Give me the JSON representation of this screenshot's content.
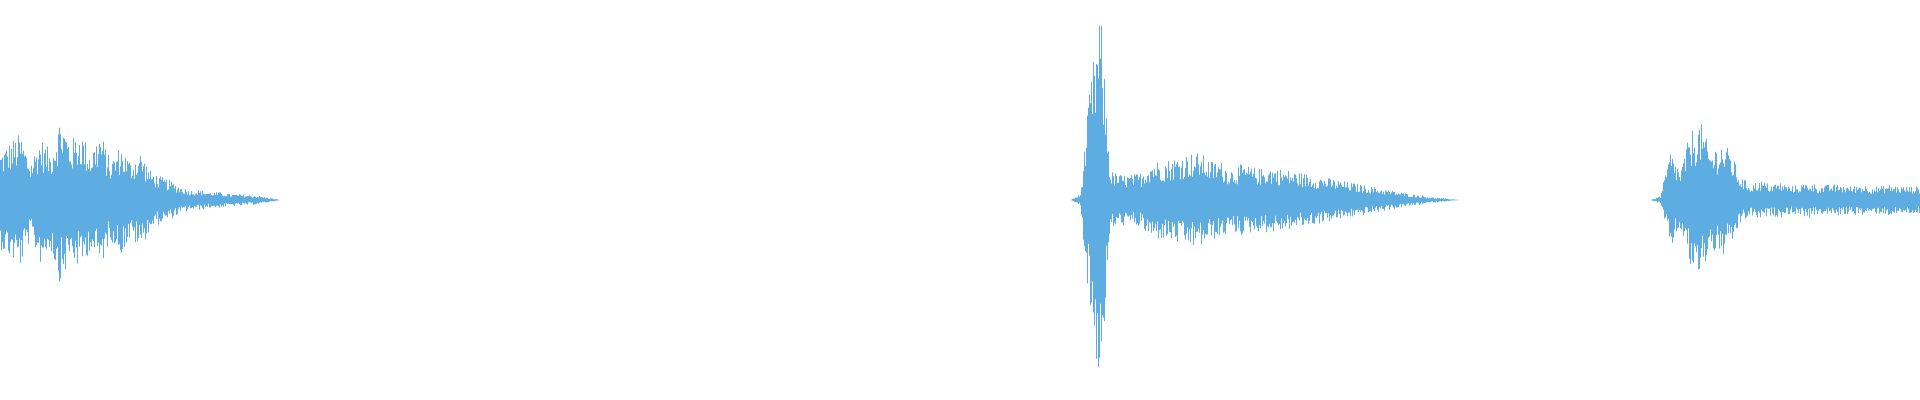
{
  "chart_data": {
    "type": "area",
    "title": "",
    "xlabel": "",
    "ylabel": "",
    "ylim": [
      -1,
      1
    ],
    "grid": false,
    "legend": "none",
    "color": "#5DADE2",
    "envelope_amplitude": [
      0.25,
      0.3,
      0.34,
      0.2,
      0.32,
      0.25,
      0.43,
      0.3,
      0.36,
      0.25,
      0.35,
      0.2,
      0.28,
      0.2,
      0.25,
      0.15,
      0.12,
      0.1,
      0.07,
      0.05,
      0.05,
      0.04,
      0.04,
      0.03,
      0.03,
      0.025,
      0.02,
      0.01,
      0,
      0,
      0,
      0,
      0,
      0,
      0,
      0,
      0,
      0,
      0,
      0,
      0,
      0,
      0,
      0,
      0,
      0,
      0,
      0,
      0,
      0,
      0,
      0,
      0,
      0,
      0,
      0,
      0,
      0,
      0,
      0,
      0,
      0,
      0,
      0,
      0,
      0,
      0,
      0,
      0,
      0,
      0,
      0,
      0,
      0,
      0,
      0,
      0,
      0,
      0,
      0,
      0,
      0,
      0,
      0,
      0,
      0,
      0,
      0,
      0,
      0,
      0,
      0,
      0,
      0,
      0,
      0,
      0,
      0,
      0,
      0,
      0,
      0,
      0,
      0,
      0,
      0,
      0,
      0,
      0.03,
      0.6,
      0.97,
      0.15,
      0.13,
      0.13,
      0.14,
      0.2,
      0.2,
      0.21,
      0.23,
      0.24,
      0.24,
      0.2,
      0.2,
      0.16,
      0.18,
      0.17,
      0.16,
      0.17,
      0.16,
      0.15,
      0.14,
      0.13,
      0.12,
      0.11,
      0.1,
      0.09,
      0.08,
      0.07,
      0.06,
      0.05,
      0.04,
      0.03,
      0.025,
      0.015,
      0.01,
      0.005,
      0,
      0,
      0,
      0,
      0,
      0,
      0,
      0,
      0,
      0,
      0,
      0,
      0,
      0,
      0,
      0,
      0,
      0,
      0,
      0,
      0.02,
      0.25,
      0.15,
      0.35,
      0.4,
      0.25,
      0.3,
      0.25,
      0.12,
      0.08,
      0.1,
      0.08,
      0.09,
      0.07,
      0.08,
      0.09,
      0.07,
      0.08,
      0.08,
      0.07,
      0.08,
      0.07,
      0.07,
      0.08,
      0.07,
      0.07
    ]
  }
}
